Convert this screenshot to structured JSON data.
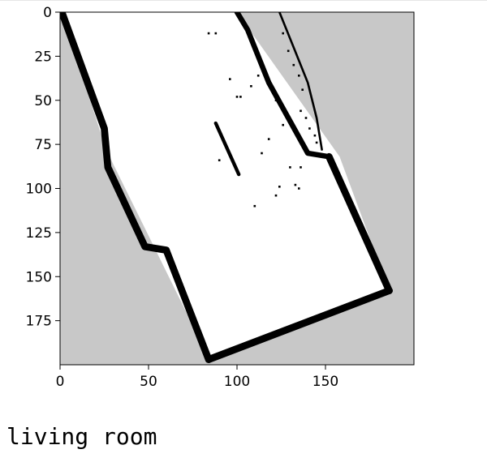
{
  "output_cell": {
    "caption": "living room"
  },
  "chart_data": {
    "type": "heatmap",
    "title": "",
    "xlabel": "",
    "ylabel": "",
    "xlim": [
      0,
      200
    ],
    "ylim": [
      200,
      0
    ],
    "x_ticks": [
      0,
      50,
      100,
      150
    ],
    "y_ticks": [
      0,
      25,
      50,
      75,
      100,
      125,
      150,
      175
    ],
    "grid": false,
    "colors": {
      "unknown": "#c8c8c8",
      "free": "#ffffff",
      "occupied": "#000000"
    },
    "free_region": [
      [
        1,
        0
      ],
      [
        100,
        0
      ],
      [
        158,
        82
      ],
      [
        186,
        158
      ],
      [
        85,
        198
      ],
      [
        26,
        78
      ]
    ],
    "walls": [
      {
        "points": [
          [
            1,
            0
          ],
          [
            25,
            66
          ],
          [
            27,
            88
          ],
          [
            48,
            133
          ],
          [
            60,
            135
          ],
          [
            84,
            197
          ]
        ],
        "width": 4
      },
      {
        "points": [
          [
            84,
            197
          ],
          [
            186,
            158
          ]
        ],
        "width": 4
      },
      {
        "points": [
          [
            186,
            158
          ],
          [
            152,
            82
          ]
        ],
        "width": 4
      },
      {
        "points": [
          [
            152,
            82
          ],
          [
            140,
            80
          ],
          [
            118,
            40
          ],
          [
            106,
            10
          ],
          [
            100,
            0
          ]
        ],
        "width": 3
      },
      {
        "points": [
          [
            124,
            0
          ],
          [
            132,
            20
          ],
          [
            140,
            40
          ],
          [
            145,
            60
          ],
          [
            148,
            78
          ]
        ],
        "width": 1.2
      },
      {
        "points": [
          [
            88,
            63
          ],
          [
            101,
            92
          ]
        ],
        "width": 2
      }
    ],
    "speckles": [
      [
        84,
        12
      ],
      [
        88,
        12
      ],
      [
        100,
        48
      ],
      [
        102,
        48
      ],
      [
        112,
        36
      ],
      [
        122,
        50
      ],
      [
        127,
        58
      ],
      [
        126,
        64
      ],
      [
        114,
        80
      ],
      [
        136,
        56
      ],
      [
        139,
        60
      ],
      [
        141,
        66
      ],
      [
        144,
        70
      ],
      [
        145,
        74
      ],
      [
        133,
        98
      ],
      [
        135,
        100
      ],
      [
        124,
        99
      ],
      [
        136,
        88
      ],
      [
        130,
        88
      ],
      [
        108,
        42
      ],
      [
        96,
        38
      ],
      [
        118,
        72
      ],
      [
        132,
        30
      ],
      [
        135,
        36
      ],
      [
        137,
        44
      ],
      [
        129,
        22
      ],
      [
        126,
        12
      ],
      [
        90,
        84
      ],
      [
        122,
        104
      ],
      [
        110,
        110
      ]
    ]
  }
}
